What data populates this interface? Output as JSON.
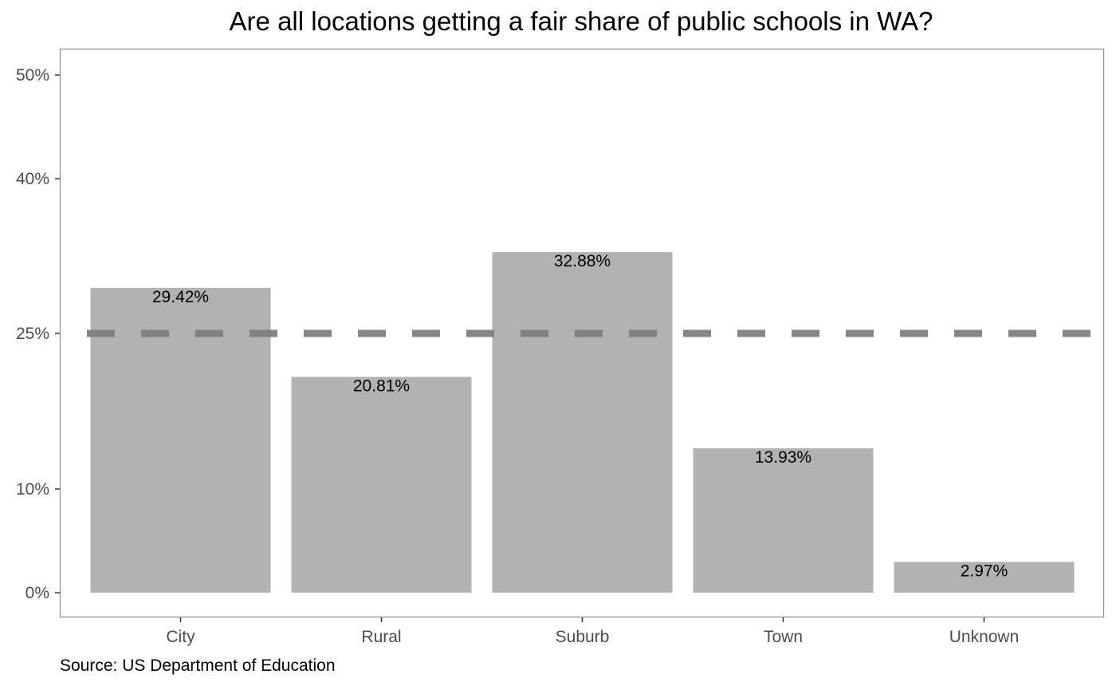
{
  "chart_data": {
    "type": "bar",
    "title": "Are all locations getting a fair share of public schools in WA?",
    "caption": "Source: US Department of Education",
    "xlabel": "",
    "ylabel": "",
    "categories": [
      "City",
      "Rural",
      "Suburb",
      "Town",
      "Unknown"
    ],
    "values": [
      29.42,
      20.81,
      32.88,
      13.93,
      2.97
    ],
    "value_labels": [
      "29.42%",
      "20.81%",
      "32.88%",
      "13.93%",
      "2.97%"
    ],
    "ylim": [
      -2.35,
      52.6
    ],
    "yticks": [
      0,
      10,
      25,
      40,
      50
    ],
    "ytick_labels": [
      "0%",
      "10%",
      "25%",
      "40%",
      "50%"
    ],
    "reference_line": {
      "y": 25,
      "style": "dashed"
    },
    "grid": false,
    "legend": "none",
    "colors": {
      "bar": "#b2b2b2",
      "reference_line": "#7f7f7f",
      "panel_border": "#8c8c8c"
    }
  }
}
